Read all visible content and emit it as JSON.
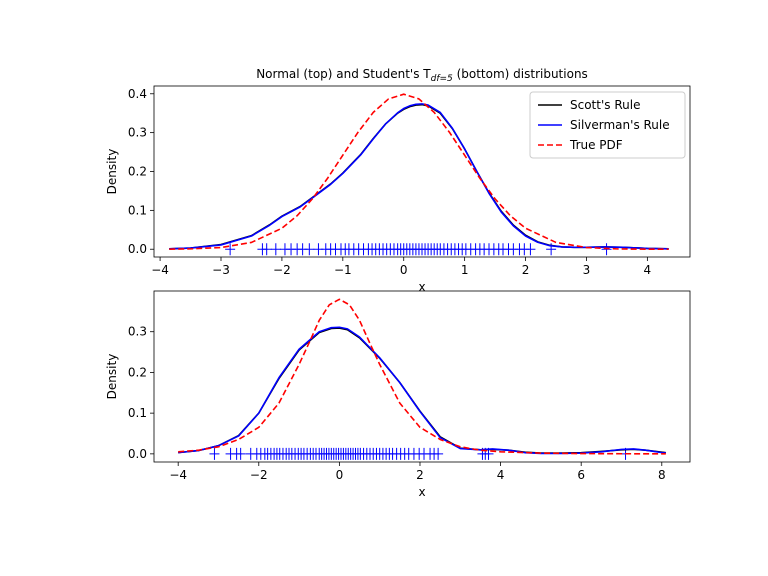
{
  "title": {
    "prefix": "Normal (top) and Student's T",
    "subscript": "df=5",
    "suffix": " (bottom) distributions"
  },
  "legend": {
    "placement": "top-right",
    "entries": [
      {
        "label": "Scott's Rule",
        "color": "#000000",
        "dash": "solid"
      },
      {
        "label": "Silverman's Rule",
        "color": "#0000ff",
        "dash": "solid"
      },
      {
        "label": "True PDF",
        "color": "#ff0000",
        "dash": "dashed"
      }
    ]
  },
  "chart_data": [
    {
      "type": "line",
      "xlabel": "x",
      "ylabel": "Density",
      "xlim": [
        -4.1,
        4.7
      ],
      "ylim": [
        -0.02,
        0.42
      ],
      "xticks": [
        -4,
        -3,
        -2,
        -1,
        0,
        1,
        2,
        3,
        4
      ],
      "yticks": [
        0.0,
        0.1,
        0.2,
        0.3,
        0.4
      ],
      "series": [
        {
          "name": "Scott's Rule",
          "color": "#000000",
          "x": [
            -3.85,
            -3.5,
            -3.0,
            -2.5,
            -2.2,
            -2.0,
            -1.7,
            -1.5,
            -1.2,
            -1.0,
            -0.7,
            -0.5,
            -0.3,
            -0.1,
            0.0,
            0.1,
            0.2,
            0.3,
            0.4,
            0.6,
            0.8,
            1.0,
            1.2,
            1.4,
            1.6,
            1.8,
            2.0,
            2.2,
            2.4,
            2.6,
            2.8,
            3.0,
            3.3,
            3.6,
            4.0,
            4.35
          ],
          "y": [
            0.001,
            0.003,
            0.012,
            0.035,
            0.063,
            0.085,
            0.11,
            0.133,
            0.168,
            0.196,
            0.245,
            0.285,
            0.322,
            0.35,
            0.36,
            0.367,
            0.371,
            0.372,
            0.369,
            0.35,
            0.31,
            0.258,
            0.2,
            0.145,
            0.098,
            0.062,
            0.036,
            0.019,
            0.01,
            0.006,
            0.005,
            0.005,
            0.006,
            0.005,
            0.002,
            0.001
          ]
        },
        {
          "name": "Silverman's Rule",
          "color": "#0000ff",
          "x": [
            -3.85,
            -3.5,
            -3.0,
            -2.5,
            -2.2,
            -2.0,
            -1.7,
            -1.5,
            -1.2,
            -1.0,
            -0.7,
            -0.5,
            -0.3,
            -0.1,
            0.0,
            0.1,
            0.2,
            0.3,
            0.4,
            0.6,
            0.8,
            1.0,
            1.2,
            1.4,
            1.6,
            1.8,
            2.0,
            2.2,
            2.4,
            2.6,
            2.8,
            3.0,
            3.3,
            3.6,
            4.0,
            4.35
          ],
          "y": [
            0.001,
            0.003,
            0.011,
            0.034,
            0.062,
            0.084,
            0.109,
            0.132,
            0.167,
            0.195,
            0.244,
            0.284,
            0.322,
            0.351,
            0.362,
            0.369,
            0.373,
            0.374,
            0.371,
            0.352,
            0.311,
            0.258,
            0.2,
            0.144,
            0.096,
            0.06,
            0.034,
            0.018,
            0.009,
            0.006,
            0.005,
            0.005,
            0.006,
            0.005,
            0.002,
            0.001
          ]
        },
        {
          "name": "True PDF",
          "color": "#ff0000",
          "dash": "dashed",
          "x": [
            -3.85,
            -3.5,
            -3.0,
            -2.5,
            -2.0,
            -1.75,
            -1.5,
            -1.25,
            -1.0,
            -0.75,
            -0.5,
            -0.25,
            0.0,
            0.25,
            0.5,
            0.75,
            1.0,
            1.25,
            1.5,
            1.75,
            2.0,
            2.5,
            3.0,
            3.5,
            4.0,
            4.35
          ],
          "y": [
            0.0002,
            0.0009,
            0.0044,
            0.0175,
            0.054,
            0.0863,
            0.1295,
            0.1826,
            0.242,
            0.3011,
            0.3521,
            0.3867,
            0.3989,
            0.3867,
            0.3521,
            0.3011,
            0.242,
            0.1826,
            0.1295,
            0.0863,
            0.054,
            0.0175,
            0.0044,
            0.0009,
            0.0001,
            0.0
          ]
        }
      ],
      "samples": [
        -2.85,
        -2.32,
        -2.25,
        -2.1,
        -1.95,
        -1.85,
        -1.75,
        -1.66,
        -1.55,
        -1.4,
        -1.28,
        -1.2,
        -1.12,
        -1.03,
        -0.96,
        -0.9,
        -0.82,
        -0.74,
        -0.66,
        -0.58,
        -0.52,
        -0.46,
        -0.4,
        -0.34,
        -0.28,
        -0.22,
        -0.16,
        -0.1,
        -0.05,
        0.0,
        0.05,
        0.1,
        0.15,
        0.2,
        0.25,
        0.3,
        0.35,
        0.4,
        0.45,
        0.5,
        0.55,
        0.6,
        0.66,
        0.72,
        0.78,
        0.84,
        0.9,
        0.96,
        1.02,
        1.1,
        1.18,
        1.25,
        1.32,
        1.4,
        1.48,
        1.56,
        1.63,
        1.72,
        1.8,
        1.9,
        1.98,
        2.08,
        2.42,
        3.33
      ]
    },
    {
      "type": "line",
      "xlabel": "x",
      "ylabel": "Density",
      "xlim": [
        -4.6,
        8.7
      ],
      "ylim": [
        -0.02,
        0.4
      ],
      "xticks": [
        -4,
        -2,
        0,
        2,
        4,
        6,
        8
      ],
      "yticks": [
        0.0,
        0.1,
        0.2,
        0.3
      ],
      "series": [
        {
          "name": "Scott's Rule",
          "color": "#000000",
          "x": [
            -4.0,
            -3.5,
            -3.0,
            -2.5,
            -2.0,
            -1.5,
            -1.0,
            -0.5,
            -0.2,
            0.0,
            0.2,
            0.5,
            1.0,
            1.5,
            2.0,
            2.5,
            3.0,
            3.5,
            3.8,
            4.2,
            4.6,
            5.0,
            5.5,
            6.0,
            6.5,
            7.0,
            7.3,
            7.6,
            8.0,
            8.1
          ],
          "y": [
            0.003,
            0.008,
            0.02,
            0.045,
            0.1,
            0.185,
            0.255,
            0.298,
            0.308,
            0.309,
            0.305,
            0.285,
            0.235,
            0.175,
            0.105,
            0.042,
            0.014,
            0.01,
            0.011,
            0.009,
            0.004,
            0.002,
            0.002,
            0.003,
            0.006,
            0.01,
            0.011,
            0.009,
            0.004,
            0.003
          ]
        },
        {
          "name": "Silverman's Rule",
          "color": "#0000ff",
          "x": [
            -4.0,
            -3.5,
            -3.0,
            -2.5,
            -2.0,
            -1.5,
            -1.0,
            -0.5,
            -0.2,
            0.0,
            0.2,
            0.5,
            1.0,
            1.5,
            2.0,
            2.5,
            3.0,
            3.5,
            3.8,
            4.2,
            4.6,
            5.0,
            5.5,
            6.0,
            6.5,
            7.0,
            7.3,
            7.6,
            8.0,
            8.1
          ],
          "y": [
            0.003,
            0.008,
            0.02,
            0.044,
            0.1,
            0.187,
            0.257,
            0.3,
            0.31,
            0.311,
            0.307,
            0.287,
            0.236,
            0.175,
            0.104,
            0.04,
            0.013,
            0.01,
            0.012,
            0.009,
            0.003,
            0.001,
            0.001,
            0.002,
            0.005,
            0.011,
            0.012,
            0.009,
            0.003,
            0.002
          ]
        },
        {
          "name": "True PDF",
          "color": "#ff0000",
          "dash": "dashed",
          "x": [
            -4.0,
            -3.5,
            -3.0,
            -2.5,
            -2.0,
            -1.5,
            -1.0,
            -0.75,
            -0.5,
            -0.25,
            0.0,
            0.25,
            0.5,
            0.75,
            1.0,
            1.5,
            2.0,
            2.5,
            3.0,
            3.5,
            4.0,
            5.0,
            6.0,
            7.0,
            8.0,
            8.1
          ],
          "y": [
            0.0051,
            0.0089,
            0.0173,
            0.0354,
            0.0651,
            0.1245,
            0.2197,
            0.2731,
            0.3279,
            0.3661,
            0.3796,
            0.3661,
            0.3279,
            0.2731,
            0.2197,
            0.1245,
            0.0651,
            0.0354,
            0.0173,
            0.0089,
            0.0051,
            0.0018,
            0.0007,
            0.0003,
            0.0001,
            0.0001
          ]
        }
      ],
      "samples": [
        -3.1,
        -2.7,
        -2.55,
        -2.45,
        -2.2,
        -2.05,
        -1.95,
        -1.85,
        -1.78,
        -1.7,
        -1.62,
        -1.55,
        -1.48,
        -1.4,
        -1.32,
        -1.25,
        -1.18,
        -1.1,
        -1.02,
        -0.95,
        -0.88,
        -0.8,
        -0.72,
        -0.65,
        -0.58,
        -0.5,
        -0.44,
        -0.38,
        -0.32,
        -0.26,
        -0.2,
        -0.14,
        -0.08,
        -0.02,
        0.04,
        0.1,
        0.16,
        0.22,
        0.28,
        0.34,
        0.4,
        0.46,
        0.52,
        0.6,
        0.68,
        0.76,
        0.84,
        0.92,
        1.0,
        1.08,
        1.16,
        1.24,
        1.32,
        1.42,
        1.52,
        1.62,
        1.72,
        1.85,
        1.98,
        2.1,
        2.25,
        2.35,
        2.45,
        3.55,
        3.62,
        3.7,
        7.1
      ]
    }
  ]
}
